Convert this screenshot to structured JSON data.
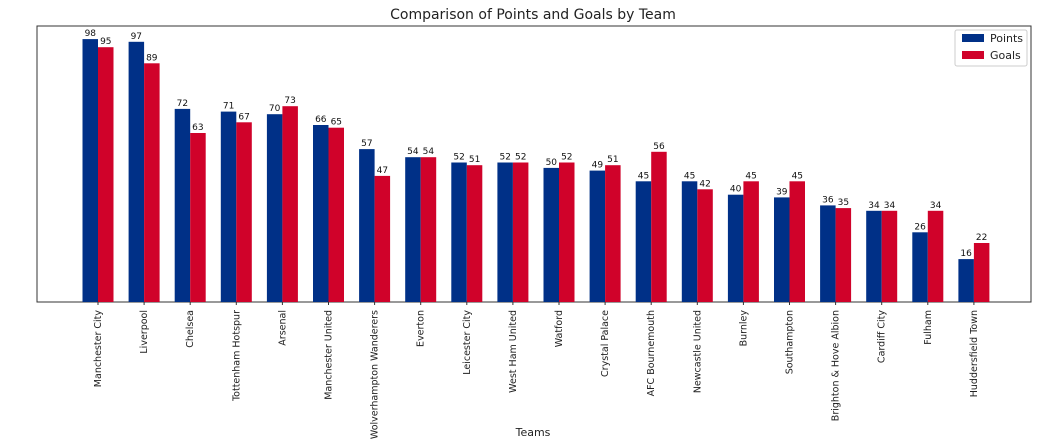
{
  "chart_data": {
    "type": "bar",
    "title": "Comparison of Points and Goals by Team",
    "xlabel": "Teams",
    "ylabel": "",
    "ylim": [
      0,
      102.9
    ],
    "legend_position": "top-right",
    "grid": false,
    "categories": [
      "Manchester City",
      "Liverpool",
      "Chelsea",
      "Tottenham Hotspur",
      "Arsenal",
      "Manchester United",
      "Wolverhampton Wanderers",
      "Everton",
      "Leicester City",
      "West Ham United",
      "Watford",
      "Crystal Palace",
      "AFC Bournemouth",
      "Newcastle United",
      "Burnley",
      "Southampton",
      "Brighton & Hove Albion",
      "Cardiff City",
      "Fulham",
      "Huddersfield Town"
    ],
    "series": [
      {
        "name": "Points",
        "color": "#003087",
        "values": [
          98,
          97,
          72,
          71,
          70,
          66,
          57,
          54,
          52,
          52,
          50,
          49,
          45,
          45,
          40,
          39,
          36,
          34,
          26,
          16
        ]
      },
      {
        "name": "Goals",
        "color": "#D0022A",
        "values": [
          95,
          89,
          63,
          67,
          73,
          65,
          47,
          54,
          51,
          52,
          52,
          51,
          56,
          42,
          45,
          45,
          35,
          34,
          34,
          22
        ]
      }
    ]
  }
}
